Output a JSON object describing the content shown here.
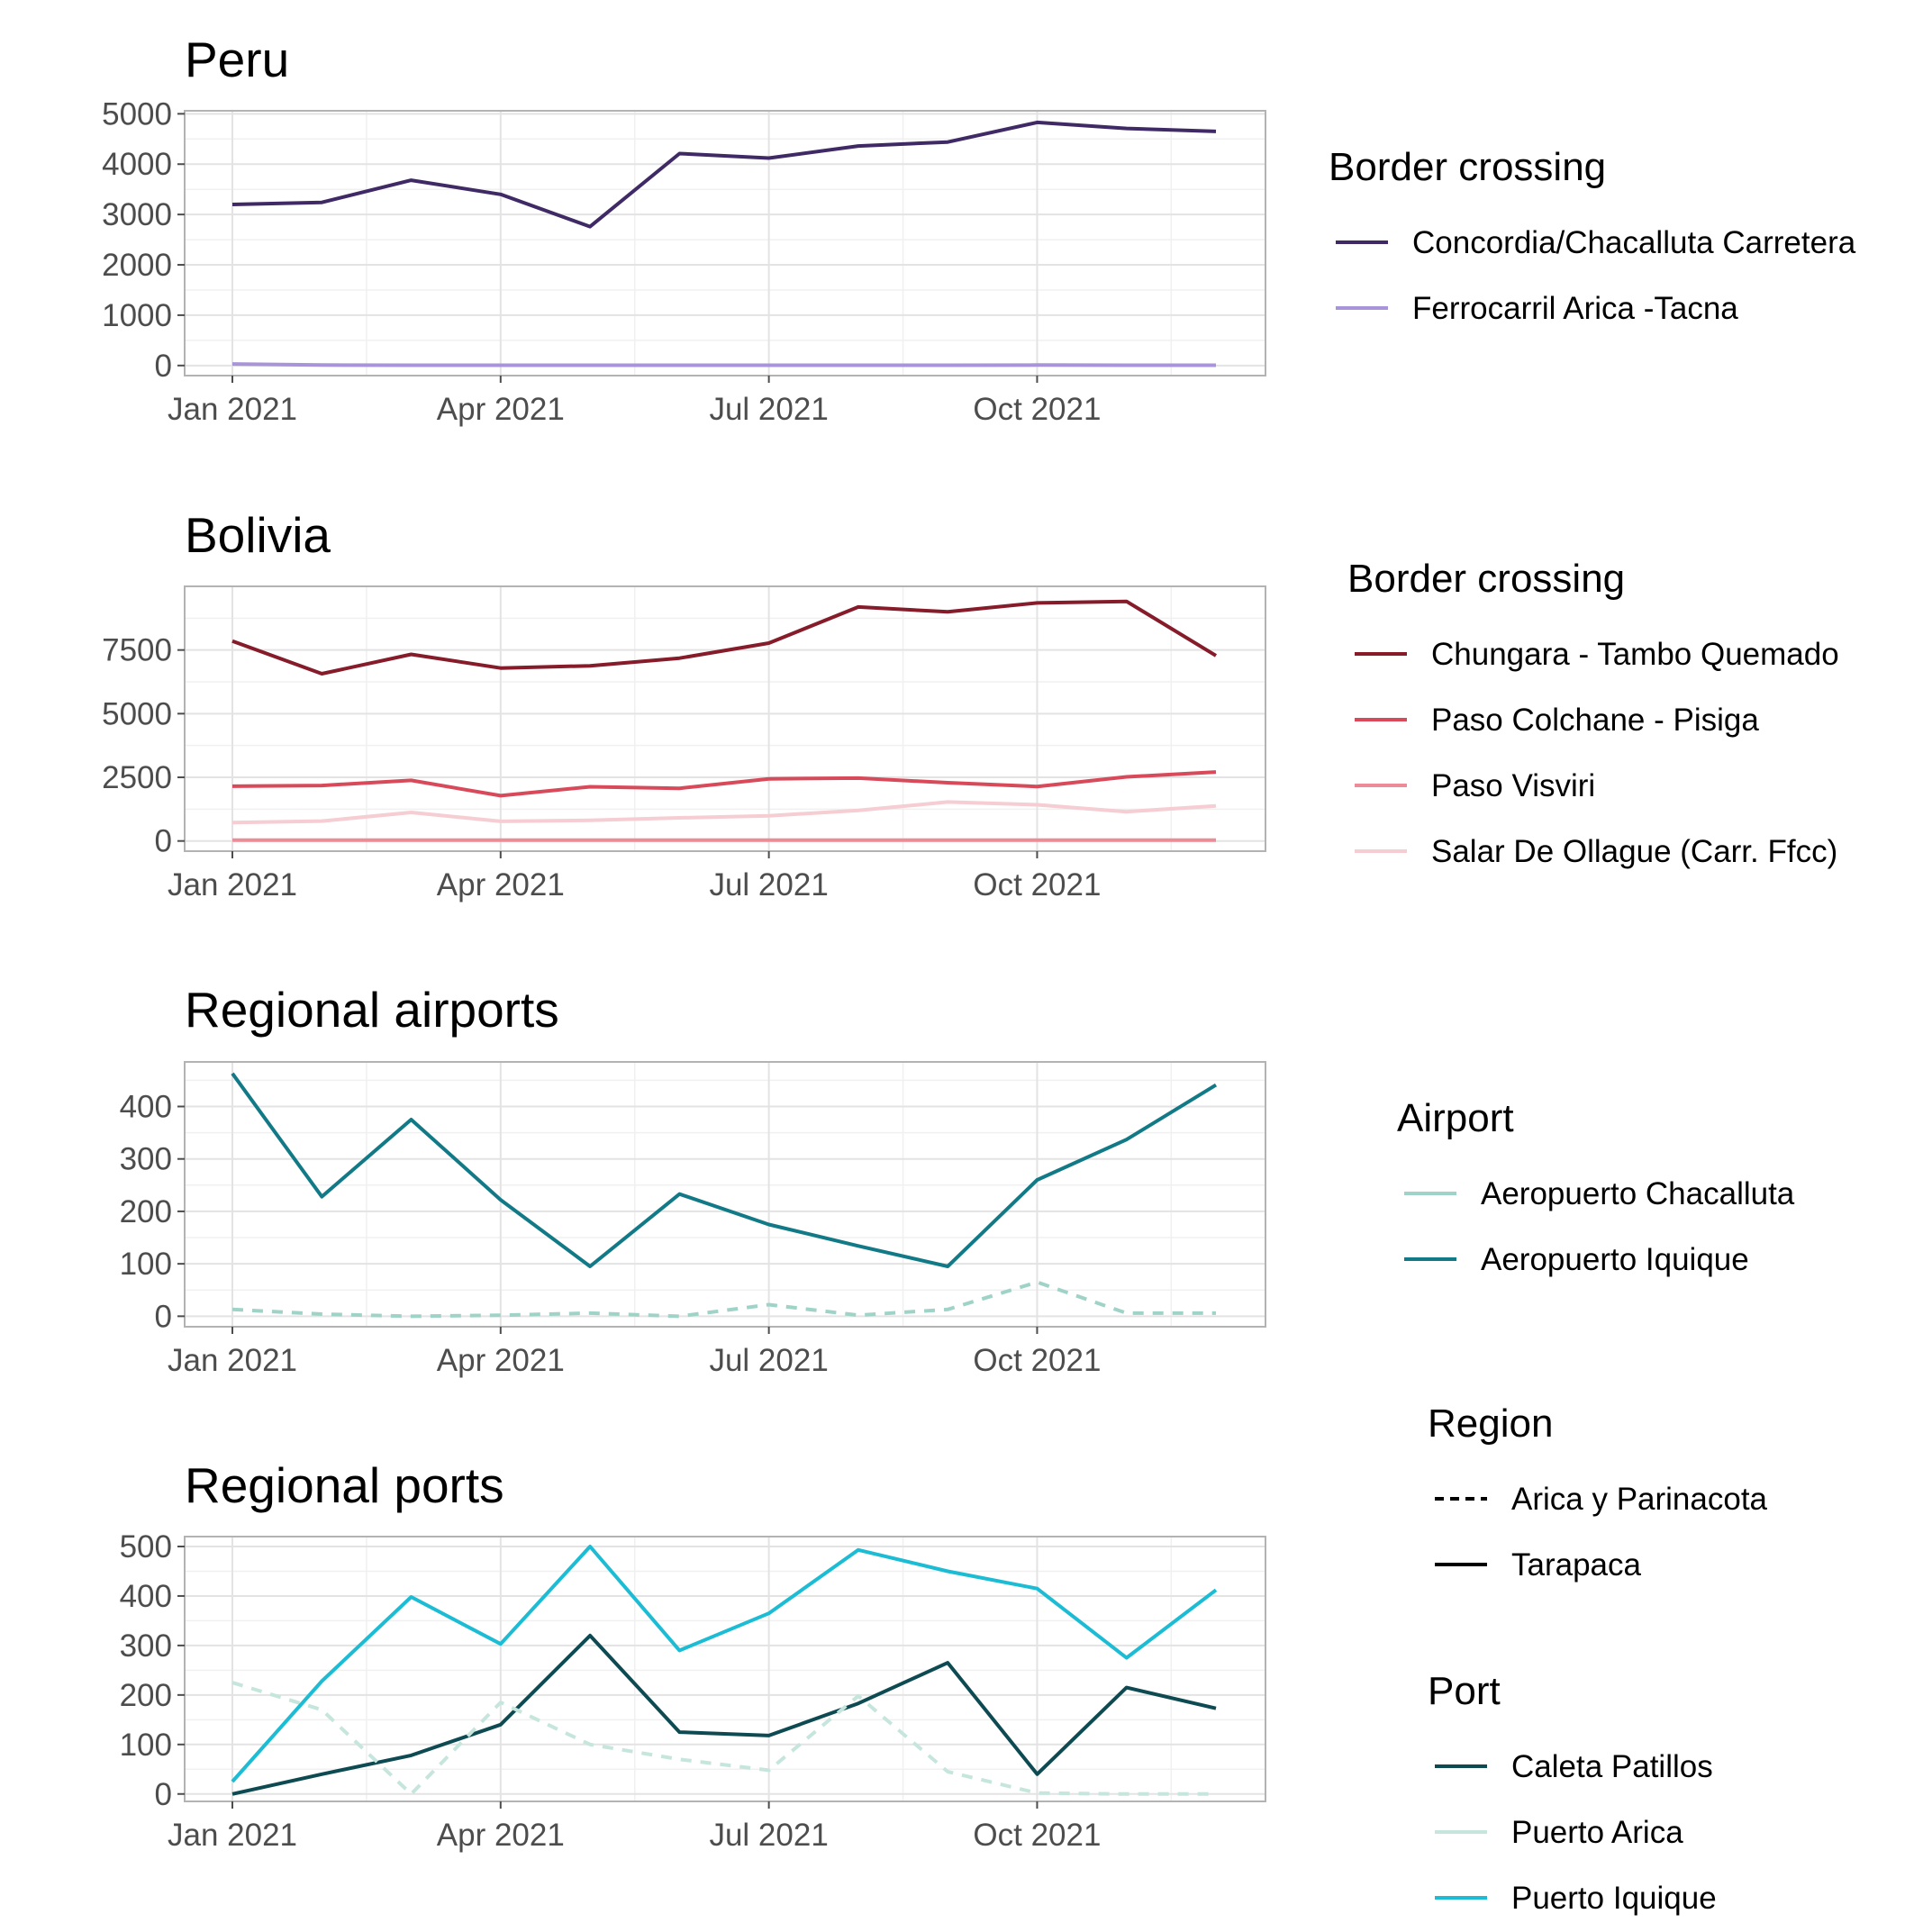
{
  "chart_data": [
    {
      "type": "line",
      "title": "Peru",
      "xlabel": "",
      "ylabel": "",
      "ylim": [
        -200,
        5060
      ],
      "y_ticks": [
        0,
        1000,
        2000,
        3000,
        4000,
        5000
      ],
      "x_ticks": [
        "Jan 2021",
        "Apr 2021",
        "Jul 2021",
        "Oct 2021"
      ],
      "grid": true,
      "legend_position": "right",
      "legend": {
        "title": "Border crossing",
        "entries": [
          "Concordia/Chacalluta Carretera",
          "Ferrocarril Arica -Tacna"
        ]
      },
      "x": [
        "2021-01",
        "2021-02",
        "2021-03",
        "2021-04",
        "2021-05",
        "2021-06",
        "2021-07",
        "2021-08",
        "2021-09",
        "2021-10",
        "2021-11",
        "2021-12"
      ],
      "series": [
        {
          "name": "Concordia/Chacalluta Carretera",
          "color": "#3f2a66",
          "dash": "solid",
          "values": [
            3200,
            3240,
            3680,
            3400,
            2760,
            4210,
            4120,
            4360,
            4440,
            4830,
            4710,
            4650
          ]
        },
        {
          "name": "Ferrocarril Arica -Tacna",
          "color": "#a894d8",
          "dash": "solid",
          "values": [
            30,
            10,
            5,
            5,
            5,
            5,
            5,
            5,
            5,
            10,
            5,
            5
          ]
        }
      ]
    },
    {
      "type": "line",
      "title": "Bolivia",
      "xlabel": "",
      "ylabel": "",
      "ylim": [
        -400,
        10000
      ],
      "y_ticks": [
        0,
        2500,
        5000,
        7500
      ],
      "x_ticks": [
        "Jan 2021",
        "Apr 2021",
        "Jul 2021",
        "Oct 2021"
      ],
      "grid": true,
      "legend_position": "right",
      "legend": {
        "title": "Border crossing",
        "entries": [
          "Chungara - Tambo Quemado",
          "Paso Colchane - Pisiga",
          "Paso Visviri",
          "Salar De Ollague (Carr. Ffcc)"
        ]
      },
      "x": [
        "2021-01",
        "2021-02",
        "2021-03",
        "2021-04",
        "2021-05",
        "2021-06",
        "2021-07",
        "2021-08",
        "2021-09",
        "2021-10",
        "2021-11",
        "2021-12"
      ],
      "series": [
        {
          "name": "Chungara - Tambo Quemado",
          "color": "#861b2a",
          "dash": "solid",
          "values": [
            7850,
            6570,
            7330,
            6790,
            6880,
            7180,
            7770,
            9190,
            9000,
            9350,
            9410,
            7280
          ]
        },
        {
          "name": "Paso Colchane - Pisiga",
          "color": "#d84a5a",
          "dash": "solid",
          "values": [
            2150,
            2180,
            2380,
            1780,
            2130,
            2070,
            2440,
            2470,
            2290,
            2140,
            2520,
            2710
          ]
        },
        {
          "name": "Paso Visviri",
          "color": "#ed8c96",
          "dash": "solid",
          "values": [
            30,
            30,
            30,
            30,
            30,
            30,
            30,
            30,
            30,
            30,
            30,
            30
          ]
        },
        {
          "name": "Salar De Ollague (Carr. Ffcc)",
          "color": "#f5cdd2",
          "dash": "solid",
          "values": [
            720,
            780,
            1120,
            770,
            810,
            910,
            990,
            1200,
            1530,
            1420,
            1150,
            1380
          ]
        }
      ]
    },
    {
      "type": "line",
      "title": "Regional airports",
      "xlabel": "",
      "ylabel": "",
      "ylim": [
        -20,
        485
      ],
      "y_ticks": [
        0,
        100,
        200,
        300,
        400
      ],
      "x_ticks": [
        "Jan 2021",
        "Apr 2021",
        "Jul 2021",
        "Oct 2021"
      ],
      "grid": true,
      "legend_position": "right",
      "legend": {
        "title": "Airport",
        "entries": [
          "Aeropuerto Chacalluta",
          "Aeropuerto Iquique"
        ]
      },
      "x": [
        "2021-01",
        "2021-02",
        "2021-03",
        "2021-04",
        "2021-05",
        "2021-06",
        "2021-07",
        "2021-08",
        "2021-09",
        "2021-10",
        "2021-11",
        "2021-12"
      ],
      "series": [
        {
          "name": "Aeropuerto Chacalluta",
          "color": "#9fd3c7",
          "dash": "dashed",
          "values": [
            13,
            4,
            0,
            2,
            6,
            0,
            22,
            2,
            13,
            65,
            6,
            6
          ]
        },
        {
          "name": "Aeropuerto Iquique",
          "color": "#127a87",
          "dash": "solid",
          "values": [
            463,
            228,
            375,
            222,
            95,
            233,
            175,
            134,
            95,
            260,
            337,
            441
          ]
        }
      ]
    },
    {
      "type": "line",
      "title": "Regional ports",
      "xlabel": "",
      "ylabel": "",
      "ylim": [
        -15,
        520
      ],
      "y_ticks": [
        0,
        100,
        200,
        300,
        400,
        500
      ],
      "x_ticks": [
        "Jan 2021",
        "Apr 2021",
        "Jul 2021",
        "Oct 2021"
      ],
      "grid": true,
      "legend_position": "right",
      "legend": [
        {
          "title": "Region",
          "entries": [
            {
              "label": "Arica y Parinacota",
              "dash": "dashed",
              "color": "#000000"
            },
            {
              "label": "Tarapaca",
              "dash": "solid",
              "color": "#000000"
            }
          ]
        },
        {
          "title": "Port",
          "entries": [
            {
              "label": "Caleta Patillos",
              "color": "#0d4a52"
            },
            {
              "label": "Puerto Arica",
              "color": "#c6e6dd"
            },
            {
              "label": "Puerto Iquique",
              "color": "#1bbcd4"
            }
          ]
        }
      ],
      "x": [
        "2021-01",
        "2021-02",
        "2021-03",
        "2021-04",
        "2021-05",
        "2021-06",
        "2021-07",
        "2021-08",
        "2021-09",
        "2021-10",
        "2021-11",
        "2021-12"
      ],
      "series": [
        {
          "name": "Caleta Patillos",
          "color": "#0d4a52",
          "dash": "solid",
          "values": [
            0,
            40,
            78,
            140,
            320,
            125,
            118,
            183,
            265,
            40,
            215,
            173
          ]
        },
        {
          "name": "Puerto Arica",
          "color": "#c6e6dd",
          "dash": "dashed",
          "values": [
            225,
            170,
            0,
            185,
            100,
            70,
            48,
            198,
            45,
            2,
            0,
            0
          ]
        },
        {
          "name": "Puerto Iquique",
          "color": "#1bbcd4",
          "dash": "solid",
          "values": [
            25,
            228,
            398,
            303,
            500,
            290,
            365,
            493,
            450,
            415,
            275,
            412
          ]
        }
      ]
    }
  ]
}
